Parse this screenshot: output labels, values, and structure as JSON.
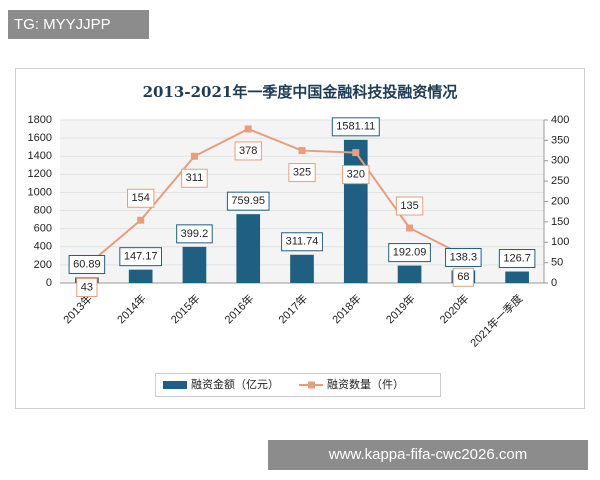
{
  "overlay": {
    "top_label": "TG: MYYJJPP",
    "bottom_label": "www.kappa-fifa-cwc2026.com"
  },
  "chart_data": {
    "type": "bar-line",
    "title": "2013-2021年一季度中国金融科技投融资情况",
    "categories": [
      "2013年",
      "2014年",
      "2015年",
      "2016年",
      "2017年",
      "2018年",
      "2019年",
      "2020年",
      "2021年一季度"
    ],
    "series": [
      {
        "name": "融资金额（亿元）",
        "color": "#1f5f82",
        "type": "bar",
        "values": [
          60.89,
          147.17,
          399.2,
          759.95,
          311.74,
          1581.11,
          192.09,
          138.3,
          126.7
        ]
      },
      {
        "name": "融资数量（件）",
        "color": "#e89d7d",
        "type": "line",
        "axis": "y2",
        "values": [
          43,
          154,
          311,
          378,
          325,
          320,
          135,
          68,
          null
        ]
      }
    ],
    "ylim": [
      0,
      1800
    ],
    "yticks": [
      0,
      200,
      400,
      600,
      800,
      1000,
      1200,
      1400,
      1600,
      1800
    ],
    "y2lim": [
      0,
      400
    ],
    "y2ticks": [
      0,
      50,
      100,
      150,
      200,
      250,
      300,
      350,
      400
    ],
    "grid": true,
    "legend": "bottom"
  }
}
